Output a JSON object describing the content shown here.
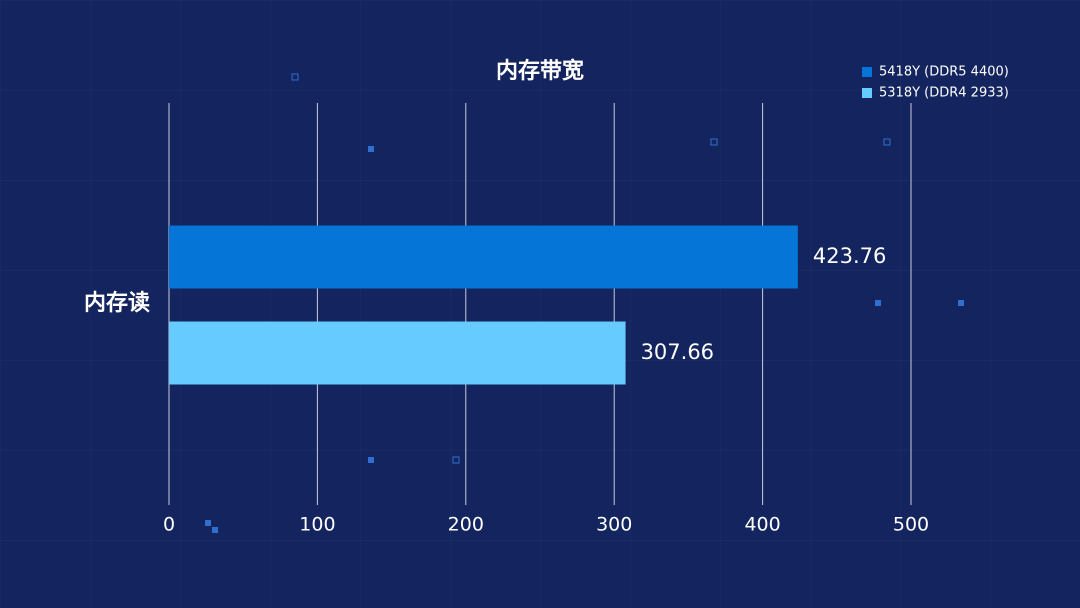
{
  "chart_data": {
    "type": "bar",
    "orientation": "horizontal",
    "title": "内存带宽",
    "categories": [
      "内存读"
    ],
    "series": [
      {
        "name": "5418Y (DDR5 4400)",
        "color": "#0575d8",
        "values": [
          423.76
        ]
      },
      {
        "name": "5318Y (DDR4 2933)",
        "color": "#66ccff",
        "values": [
          307.66
        ]
      }
    ],
    "xlim": [
      0,
      500
    ],
    "xticks": [
      0,
      100,
      200,
      300,
      400,
      500
    ],
    "grid": true,
    "legend": "top-right"
  }
}
